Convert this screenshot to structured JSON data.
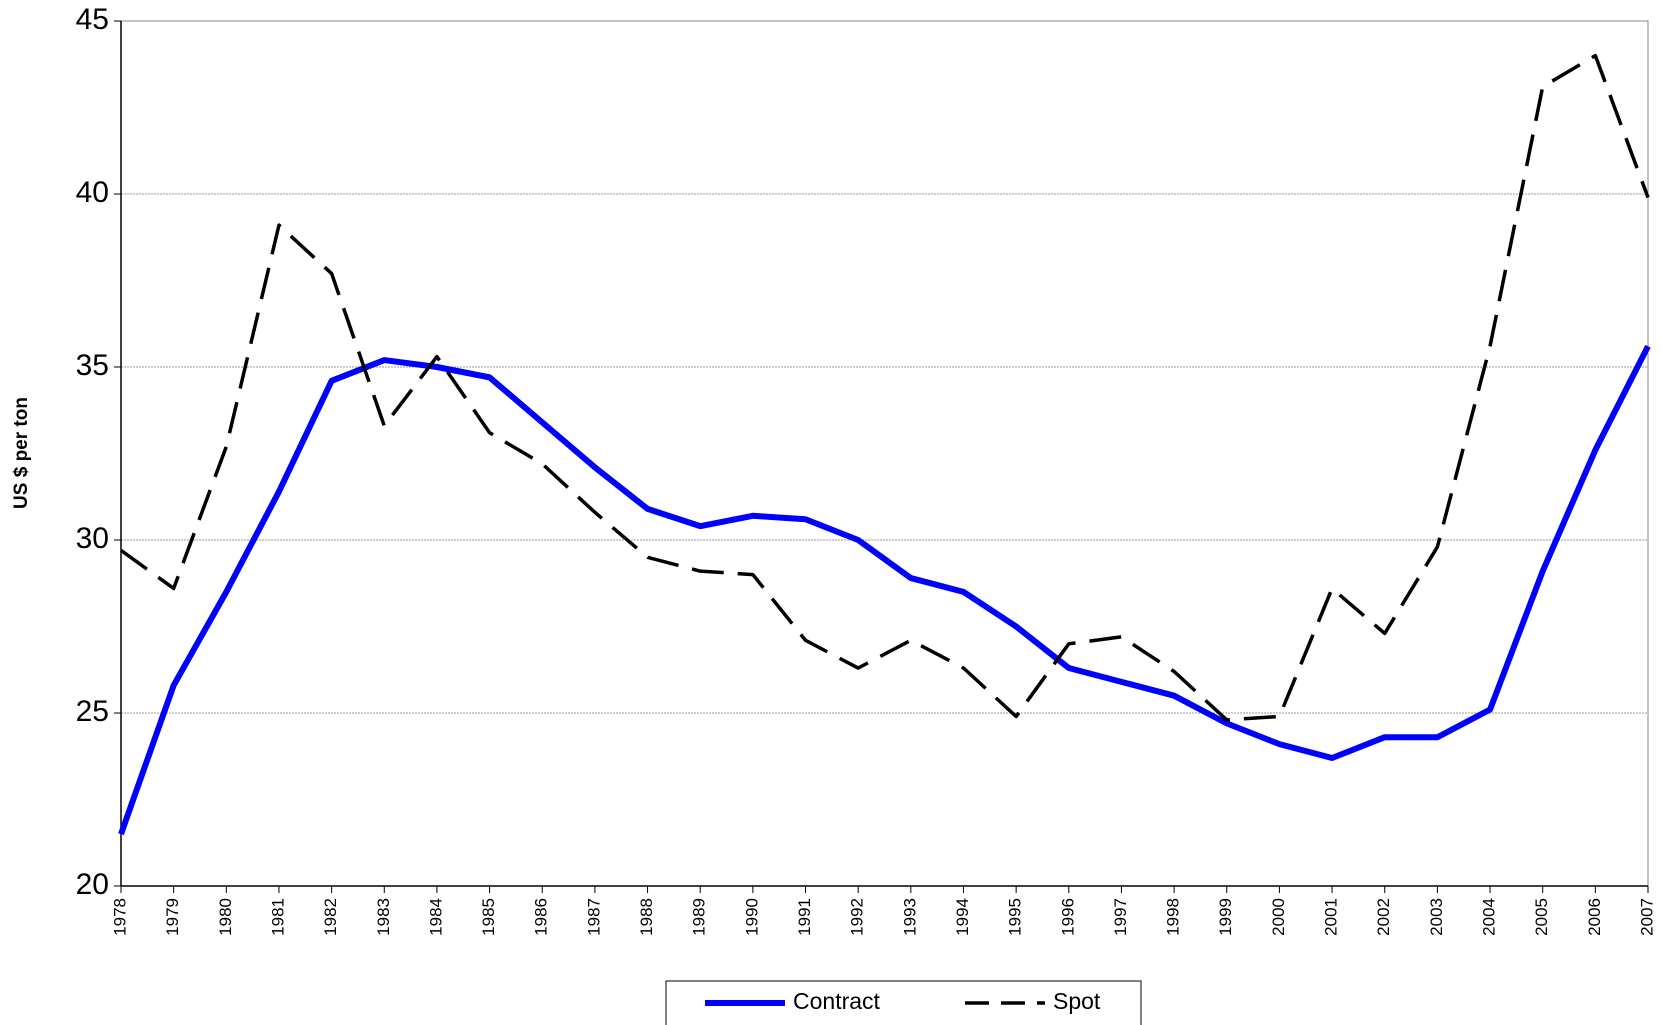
{
  "chart_data": {
    "type": "line",
    "y_label": "US $ per ton",
    "x": [
      1978,
      1979,
      1980,
      1981,
      1982,
      1983,
      1984,
      1985,
      1986,
      1987,
      1988,
      1989,
      1990,
      1991,
      1992,
      1993,
      1994,
      1995,
      1996,
      1997,
      1998,
      1999,
      2000,
      2001,
      2002,
      2003,
      2004,
      2005,
      2006,
      2007
    ],
    "xlim": [
      1978,
      2007
    ],
    "xticks": [
      1978,
      1979,
      1980,
      1981,
      1982,
      1983,
      1984,
      1985,
      1986,
      1987,
      1988,
      1989,
      1990,
      1991,
      1992,
      1993,
      1994,
      1995,
      1996,
      1997,
      1998,
      1999,
      2000,
      2001,
      2002,
      2003,
      2004,
      2005,
      2006,
      2007
    ],
    "ylim": [
      20,
      45
    ],
    "yticks": [
      20,
      25,
      30,
      35,
      40,
      45
    ],
    "grid": true,
    "legend": "bottom",
    "series": [
      {
        "name": "Contract",
        "color": "#0000ff",
        "dash": "solid",
        "values": [
          21.5,
          25.8,
          28.5,
          31.4,
          34.6,
          35.2,
          35.0,
          34.7,
          33.4,
          32.1,
          30.9,
          30.4,
          30.7,
          30.6,
          30.0,
          28.9,
          28.5,
          27.5,
          26.3,
          25.9,
          25.5,
          24.7,
          24.1,
          23.7,
          24.3,
          24.3,
          25.1,
          29.1,
          32.6,
          35.6
        ]
      },
      {
        "name": "Spot",
        "color": "#000000",
        "dash": "dashed",
        "values": [
          29.7,
          28.6,
          32.7,
          39.1,
          37.7,
          33.3,
          35.3,
          33.1,
          32.2,
          30.8,
          29.5,
          29.1,
          29.0,
          27.1,
          26.3,
          27.1,
          26.3,
          24.9,
          27.0,
          27.2,
          26.2,
          24.8,
          24.9,
          28.6,
          27.3,
          29.8,
          35.6,
          43.1,
          44.0,
          39.9
        ]
      }
    ]
  }
}
